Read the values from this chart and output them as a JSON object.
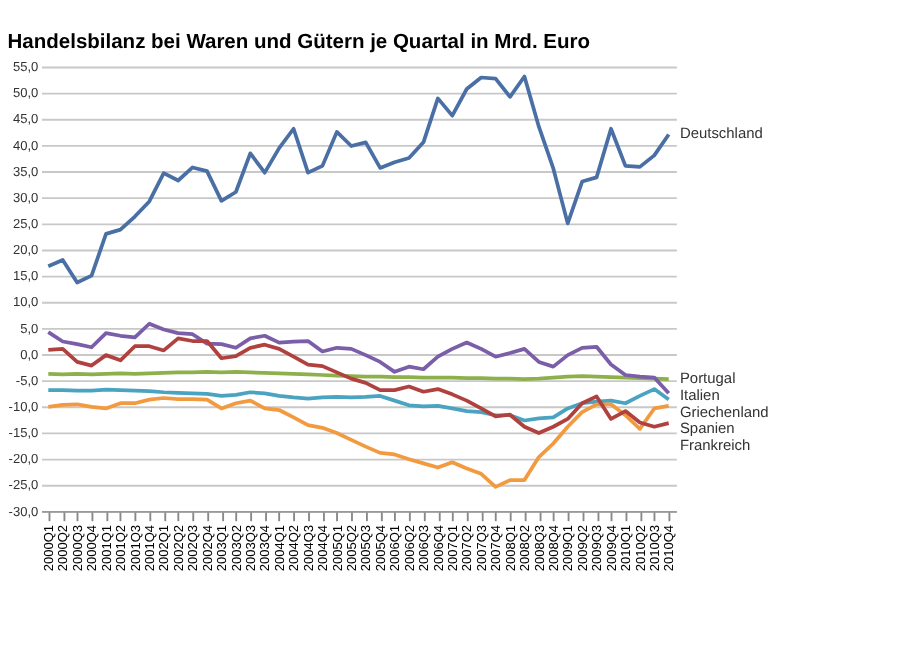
{
  "chart_data": {
    "type": "line",
    "title": "Handelsbilanz bei Waren und Gütern je Quartal in Mrd. Euro",
    "categories": [
      "2000Q1",
      "2000Q2",
      "2000Q3",
      "2000Q4",
      "2001Q1",
      "2001Q2",
      "2001Q3",
      "2001Q4",
      "2002Q1",
      "2002Q2",
      "2002Q3",
      "2002Q4",
      "2003Q1",
      "2003Q2",
      "2003Q3",
      "2003Q4",
      "2004Q1",
      "2004Q2",
      "2004Q3",
      "2004Q4",
      "2005Q1",
      "2005Q2",
      "2005Q3",
      "2005Q4",
      "2006Q1",
      "2006Q2",
      "2006Q3",
      "2006Q4",
      "2007Q1",
      "2007Q2",
      "2007Q3",
      "2007Q4",
      "2008Q1",
      "2008Q2",
      "2008Q3",
      "2008Q4",
      "2009Q1",
      "2009Q2",
      "2009Q3",
      "2009Q4",
      "2010Q1",
      "2010Q2",
      "2010Q3",
      "2010Q4"
    ],
    "series": [
      {
        "name": "Deutschland",
        "color": "#4a6fa5",
        "values": [
          16.8,
          18.0,
          13.7,
          15.0,
          23.0,
          23.8,
          26.3,
          29.2,
          34.6,
          33.2,
          35.7,
          35.0,
          29.3,
          31.0,
          38.4,
          34.7,
          39.4,
          43.1,
          34.7,
          36.0,
          42.5,
          39.8,
          40.5,
          35.6,
          36.7,
          37.5,
          40.5,
          48.9,
          45.6,
          50.7,
          52.9,
          52.7,
          49.2,
          53.1,
          43.5,
          35.5,
          25.0,
          33.0,
          33.8,
          43.1,
          36.0,
          35.8,
          38.0,
          42.0
        ]
      },
      {
        "name": "Portugal",
        "color": "#8db04a",
        "values": [
          -3.8,
          -3.9,
          -3.8,
          -3.9,
          -3.8,
          -3.7,
          -3.8,
          -3.7,
          -3.6,
          -3.5,
          -3.5,
          -3.4,
          -3.5,
          -3.4,
          -3.5,
          -3.6,
          -3.7,
          -3.8,
          -3.9,
          -4.0,
          -4.1,
          -4.2,
          -4.3,
          -4.3,
          -4.4,
          -4.4,
          -4.5,
          -4.5,
          -4.5,
          -4.6,
          -4.6,
          -4.7,
          -4.7,
          -4.8,
          -4.7,
          -4.5,
          -4.3,
          -4.2,
          -4.3,
          -4.4,
          -4.5,
          -4.6,
          -4.7,
          -4.8
        ]
      },
      {
        "name": "Italien",
        "color": "#7a5ea8",
        "values": [
          4.2,
          2.4,
          1.9,
          1.3,
          4.0,
          3.5,
          3.2,
          5.8,
          4.7,
          4.0,
          3.8,
          2.0,
          1.9,
          1.2,
          3.0,
          3.5,
          2.2,
          2.4,
          2.5,
          0.5,
          1.2,
          1.0,
          -0.2,
          -1.5,
          -3.4,
          -2.4,
          -2.9,
          -0.5,
          1.0,
          2.2,
          1.0,
          -0.5,
          0.2,
          1.0,
          -1.5,
          -2.4,
          -0.2,
          1.2,
          1.4,
          -2.0,
          -4.0,
          -4.3,
          -4.5,
          -7.5
        ]
      },
      {
        "name": "Griechenland",
        "color": "#4aa3c0",
        "values": [
          -6.9,
          -6.9,
          -7.0,
          -7.0,
          -6.8,
          -6.9,
          -7.0,
          -7.1,
          -7.3,
          -7.4,
          -7.5,
          -7.6,
          -8.0,
          -7.8,
          -7.3,
          -7.5,
          -8.0,
          -8.3,
          -8.5,
          -8.3,
          -8.2,
          -8.3,
          -8.2,
          -8.0,
          -8.9,
          -9.8,
          -10.0,
          -9.9,
          -10.4,
          -10.9,
          -11.1,
          -11.7,
          -11.7,
          -12.7,
          -12.3,
          -12.1,
          -10.4,
          -9.4,
          -9.1,
          -8.9,
          -9.4,
          -8.0,
          -6.7,
          -8.7
        ]
      },
      {
        "name": "Spanien",
        "color": "#f29a3f",
        "values": [
          -10.1,
          -9.7,
          -9.6,
          -10.1,
          -10.4,
          -9.4,
          -9.4,
          -8.7,
          -8.4,
          -8.6,
          -8.6,
          -8.7,
          -10.4,
          -9.4,
          -8.9,
          -10.4,
          -10.7,
          -12.1,
          -13.6,
          -14.1,
          -15.1,
          -16.4,
          -17.7,
          -18.9,
          -19.2,
          -20.1,
          -20.9,
          -21.7,
          -20.7,
          -21.9,
          -22.9,
          -25.4,
          -24.1,
          -24.1,
          -19.7,
          -17.1,
          -13.9,
          -11.1,
          -9.6,
          -9.6,
          -11.7,
          -14.3,
          -10.4,
          -9.9
        ]
      },
      {
        "name": "Frankreich",
        "color": "#b0413e",
        "values": [
          0.8,
          1.0,
          -1.5,
          -2.2,
          -0.2,
          -1.2,
          1.5,
          1.5,
          0.7,
          3.0,
          2.5,
          2.5,
          -0.8,
          -0.4,
          1.2,
          1.8,
          1.0,
          -0.5,
          -2.0,
          -2.3,
          -3.5,
          -4.7,
          -5.5,
          -6.9,
          -6.9,
          -6.2,
          -7.2,
          -6.7,
          -7.7,
          -8.9,
          -10.4,
          -11.9,
          -11.6,
          -13.9,
          -15.1,
          -13.9,
          -12.4,
          -9.4,
          -8.1,
          -12.4,
          -10.9,
          -13.1,
          -13.9,
          -13.2
        ]
      }
    ],
    "ylim": [
      -30,
      55
    ],
    "yticks": [
      {
        "value": -30,
        "label": "-30,0"
      },
      {
        "value": -25,
        "label": "-25,0"
      },
      {
        "value": -20,
        "label": "-20,0"
      },
      {
        "value": -15,
        "label": "-15,0"
      },
      {
        "value": -10,
        "label": "-10,0"
      },
      {
        "value": -5,
        "label": "-5,0"
      },
      {
        "value": 0,
        "label": "0,0"
      },
      {
        "value": 5,
        "label": "5,0"
      },
      {
        "value": 10,
        "label": "10,0"
      },
      {
        "value": 15,
        "label": "15,0"
      },
      {
        "value": 20,
        "label": "20,0"
      },
      {
        "value": 25,
        "label": "25,0"
      },
      {
        "value": 30,
        "label": "30,0"
      },
      {
        "value": 35,
        "label": "35,0"
      },
      {
        "value": 40,
        "label": "40,0"
      },
      {
        "value": 45,
        "label": "45,0"
      },
      {
        "value": 50,
        "label": "50,0"
      },
      {
        "value": 55,
        "label": "55,0"
      }
    ],
    "grid": "y",
    "marker": "none",
    "line_style": "solid"
  }
}
